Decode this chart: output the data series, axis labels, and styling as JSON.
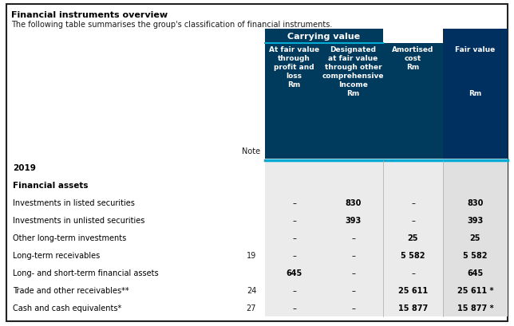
{
  "title": "Financial instruments overview",
  "subtitle": "The following table summarises the group's classification of financial instruments.",
  "carrying_value_label": "Carrying value",
  "rows": [
    {
      "label": "2019",
      "note": "",
      "col1": "",
      "col2": "",
      "col3": "",
      "col4": "",
      "bold": true
    },
    {
      "label": "Financial assets",
      "note": "",
      "col1": "",
      "col2": "",
      "col3": "",
      "col4": "",
      "bold": true
    },
    {
      "label": "Investments in listed securities",
      "note": "",
      "col1": "–",
      "col2": "830",
      "col3": "–",
      "col4": "830",
      "bold": false
    },
    {
      "label": "Investments in unlisted securities",
      "note": "",
      "col1": "–",
      "col2": "393",
      "col3": "–",
      "col4": "393",
      "bold": false
    },
    {
      "label": "Other long-term investments",
      "note": "",
      "col1": "–",
      "col2": "–",
      "col3": "25",
      "col4": "25",
      "bold": false
    },
    {
      "label": "Long-term receivables",
      "note": "19",
      "col1": "–",
      "col2": "–",
      "col3": "5 582",
      "col4": "5 582",
      "bold": false
    },
    {
      "label": "Long- and short-term financial assets",
      "note": "",
      "col1": "645",
      "col2": "–",
      "col3": "–",
      "col4": "645",
      "bold": false
    },
    {
      "label": "Trade and other receivables**",
      "note": "24",
      "col1": "–",
      "col2": "–",
      "col3": "25 611",
      "col4": "25 611 *",
      "bold": false
    },
    {
      "label": "Cash and cash equivalents*",
      "note": "27",
      "col1": "–",
      "col2": "–",
      "col3": "15 877",
      "col4": "15 877 *",
      "bold": false
    }
  ],
  "dark_blue": "#003a5d",
  "fair_value_blue": "#003060",
  "light_blue": "#00aad4",
  "bg_gray": "#e0e0e0",
  "bg_light_gray": "#ebebeb",
  "bg_white": "#ffffff",
  "text_white": "#ffffff",
  "text_dark": "#1a1a1a",
  "text_black": "#000000",
  "col_div_color": "#555577",
  "border_color": "#222222",
  "note_label": "Note",
  "col1_header": "At fair value\nthrough\nprofit and\nloss\nRm",
  "col2_header": "Designated\nat fair value\nthrough other\ncomprehensive\nIncome\nRm",
  "col3_header": "Amortised\ncost\nRm",
  "col4_header": "Fair value\n\n\n\n\nRm"
}
